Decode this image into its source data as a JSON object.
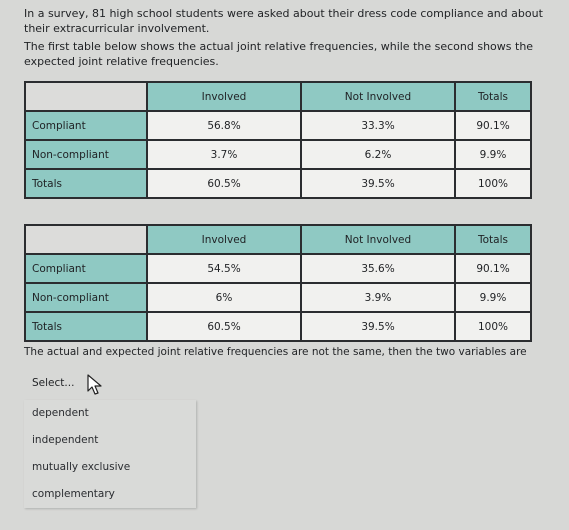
{
  "intro": {
    "line1": "In a survey, 81 high school students were asked about their dress code compliance and about their extracurricular involvement.",
    "line2": "The first table below shows the actual joint relative frequencies, while the second shows the expected joint relative frequencies."
  },
  "table_actual": {
    "headers": [
      "",
      "Involved",
      "Not Involved",
      "Totals"
    ],
    "rows": [
      {
        "label": "Compliant",
        "values": [
          "56.8%",
          "33.3%",
          "90.1%"
        ]
      },
      {
        "label": "Non-compliant",
        "values": [
          "3.7%",
          "6.2%",
          "9.9%"
        ]
      },
      {
        "label": "Totals",
        "values": [
          "60.5%",
          "39.5%",
          "100%"
        ]
      }
    ]
  },
  "table_expected": {
    "headers": [
      "",
      "Involved",
      "Not Involved",
      "Totals"
    ],
    "rows": [
      {
        "label": "Compliant",
        "values": [
          "54.5%",
          "35.6%",
          "90.1%"
        ]
      },
      {
        "label": "Non-compliant",
        "values": [
          "6%",
          "3.9%",
          "9.9%"
        ]
      },
      {
        "label": "Totals",
        "values": [
          "60.5%",
          "39.5%",
          "100%"
        ]
      }
    ]
  },
  "conclusion": "The actual and expected joint relative frequencies are not the same, then the two variables are",
  "select": {
    "value": "Select...",
    "options": [
      "dependent",
      "independent",
      "mutually exclusive",
      "complementary"
    ]
  }
}
